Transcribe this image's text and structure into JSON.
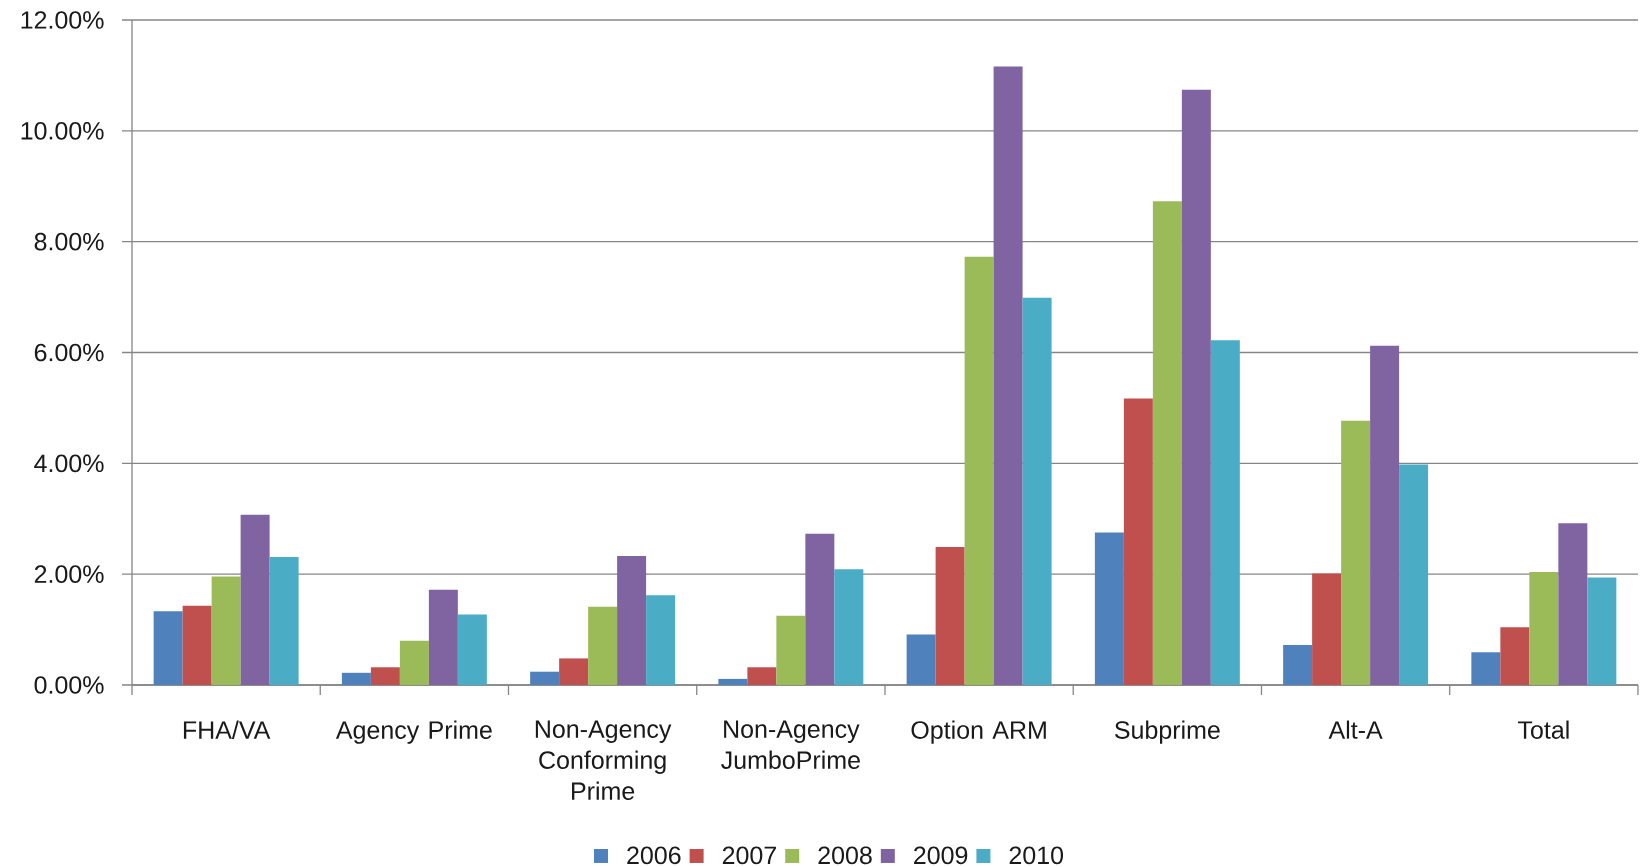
{
  "chart_data": {
    "type": "bar",
    "categories": [
      "FHA/VA",
      "Agency Prime",
      "Non-Agency Conforming Prime",
      "Non-Agency JumboPrime",
      "Option ARM",
      "Subprime",
      "Alt-A",
      "Total"
    ],
    "series": [
      {
        "name": "2006",
        "color": "#4f81bd",
        "values": [
          1.33,
          0.22,
          0.24,
          0.11,
          0.91,
          2.75,
          0.72,
          0.59
        ]
      },
      {
        "name": "2007",
        "color": "#c0504d",
        "values": [
          1.43,
          0.32,
          0.48,
          0.32,
          2.49,
          5.17,
          2.01,
          1.04
        ]
      },
      {
        "name": "2008",
        "color": "#9bbb59",
        "values": [
          1.96,
          0.8,
          1.41,
          1.25,
          7.73,
          8.73,
          4.77,
          2.04
        ]
      },
      {
        "name": "2009",
        "color": "#8064a2",
        "values": [
          3.07,
          1.72,
          2.33,
          2.73,
          11.16,
          10.74,
          6.12,
          2.92
        ]
      },
      {
        "name": "2010",
        "color": "#4bacc6",
        "values": [
          2.31,
          1.27,
          1.62,
          2.09,
          6.99,
          6.22,
          3.98,
          1.94
        ]
      }
    ],
    "ylim": [
      0,
      12
    ],
    "yticks": [
      {
        "value": 0,
        "label": "0.00%"
      },
      {
        "value": 2,
        "label": "2.00%"
      },
      {
        "value": 4,
        "label": "4.00%"
      },
      {
        "value": 6,
        "label": "6.00%"
      },
      {
        "value": 8,
        "label": "8.00%"
      },
      {
        "value": 10,
        "label": "10.00%"
      },
      {
        "value": 12,
        "label": "12.00%"
      }
    ],
    "grid": "y",
    "legend": "bottom"
  }
}
